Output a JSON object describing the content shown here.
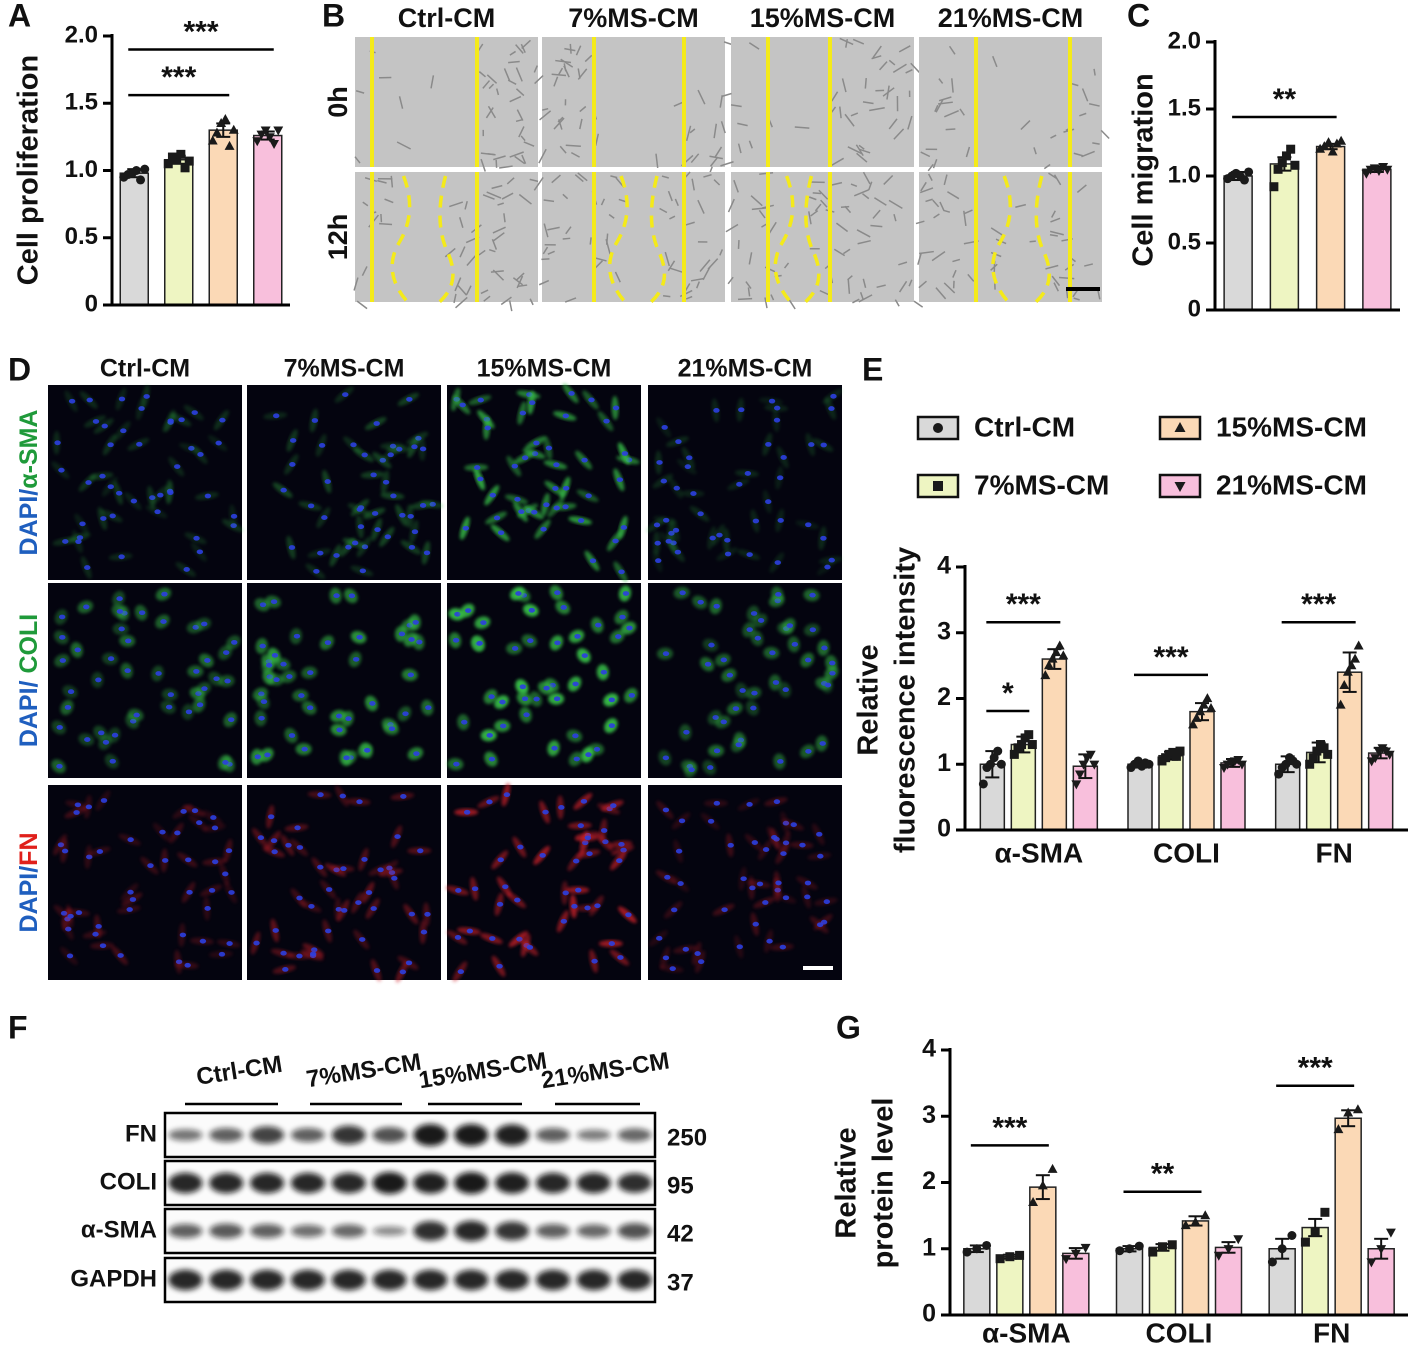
{
  "panel_labels": [
    "A",
    "B",
    "C",
    "D",
    "E",
    "F",
    "G"
  ],
  "scratch": {
    "groups": [
      "Ctrl-CM",
      "7%MS-CM",
      "15%MS-CM",
      "21%MS-CM"
    ],
    "times": [
      "0h",
      "12h"
    ]
  },
  "immuno": {
    "groups": [
      "Ctrl-CM",
      "7%MS-CM",
      "15%MS-CM",
      "21%MS-CM"
    ],
    "rows": [
      {
        "prefix": "DAPI/",
        "stain": "α-SMA"
      },
      {
        "prefix": "DAPI/ ",
        "stain": "COLI"
      },
      {
        "prefix": "DAPI/",
        "stain": "FN"
      }
    ]
  },
  "blot": {
    "groups": [
      "Ctrl-CM",
      "7%MS-CM",
      "15%MS-CM",
      "21%MS-CM"
    ],
    "rows": [
      {
        "name": "FN",
        "kda": 250
      },
      {
        "name": "COLI",
        "kda": 95
      },
      {
        "name": "α-SMA",
        "kda": 42
      },
      {
        "name": "GAPDH",
        "kda": 37
      }
    ]
  },
  "chart_data": [
    {
      "type": "bar",
      "ylabel": "Cell proliferation",
      "categories": [
        null,
        null,
        null,
        null
      ],
      "values": [
        0.98,
        1.08,
        1.3,
        1.26
      ],
      "errors": [
        0.03,
        0.03,
        0.05,
        0.03
      ],
      "points": [
        [
          0.95,
          0.97,
          0.98,
          1.0,
          0.93,
          1.01
        ],
        [
          1.05,
          1.1,
          1.08,
          1.12,
          1.02,
          1.07
        ],
        [
          1.22,
          1.28,
          1.35,
          1.38,
          1.18,
          1.3
        ],
        [
          1.22,
          1.27,
          1.3,
          1.25,
          1.2,
          1.3
        ]
      ],
      "colors": [
        "#d9d9d9",
        "#eef5c2",
        "#fbd9b6",
        "#f8bfdc"
      ],
      "markers": [
        "circle",
        "square",
        "triangle-up",
        "triangle-down"
      ],
      "ylim": [
        0,
        2
      ],
      "yticks": [
        0,
        0.5,
        {
          "value": 1,
          "label": "1.0"
        },
        1.5,
        {
          "value": 2,
          "label": "2.0"
        }
      ],
      "comparisons": [
        {
          "label": "***",
          "between": [
            0,
            2
          ]
        },
        {
          "label": "***",
          "between": [
            0,
            3
          ]
        }
      ]
    },
    {
      "type": "bar",
      "ylabel": "Cell migration",
      "categories": [
        null,
        null,
        null,
        null
      ],
      "values": [
        1.0,
        1.09,
        1.22,
        1.05
      ],
      "errors": [
        0.03,
        0.05,
        0.02,
        0.02
      ],
      "points": [
        [
          0.98,
          1.0,
          1.02,
          1.0,
          0.97,
          1.03
        ],
        [
          0.92,
          1.05,
          1.1,
          1.15,
          1.2,
          1.08
        ],
        [
          1.2,
          1.22,
          1.25,
          1.18,
          1.24,
          1.26
        ],
        [
          1.02,
          1.05,
          1.06,
          1.04,
          1.07,
          1.05
        ]
      ],
      "colors": [
        "#d9d9d9",
        "#eef5c2",
        "#fbd9b6",
        "#f8bfdc"
      ],
      "markers": [
        "circle",
        "square",
        "triangle-up",
        "triangle-down"
      ],
      "ylim": [
        0,
        2
      ],
      "yticks": [
        0,
        0.5,
        {
          "value": 1,
          "label": "1.0"
        },
        1.5,
        {
          "value": 2,
          "label": "2.0"
        }
      ],
      "comparisons": [
        {
          "label": "**",
          "between": [
            0,
            2
          ]
        }
      ]
    },
    {
      "type": "bar",
      "ylabel": [
        "Relative",
        "fluorescence intensity"
      ],
      "categories": [
        "α-SMA",
        "COLI",
        "FN"
      ],
      "legend": "top",
      "series": [
        {
          "name": "Ctrl-CM",
          "color": "#d9d9d9",
          "marker": "circle",
          "values": [
            1.0,
            1.0,
            1.0
          ],
          "errors": [
            0.2,
            0.05,
            0.12
          ],
          "points": [
            [
              0.7,
              0.95,
              1.0,
              1.1,
              1.2,
              1.0
            ],
            [
              0.95,
              1.0,
              1.05,
              0.97,
              1.02,
              1.0
            ],
            [
              0.85,
              0.95,
              1.0,
              1.1,
              1.05,
              1.0
            ]
          ]
        },
        {
          "name": "7%MS-CM",
          "color": "#eef5c2",
          "marker": "square",
          "values": [
            1.3,
            1.13,
            1.18
          ],
          "errors": [
            0.12,
            0.06,
            0.15
          ],
          "points": [
            [
              1.15,
              1.25,
              1.3,
              1.4,
              1.45,
              1.3
            ],
            [
              1.05,
              1.1,
              1.15,
              1.18,
              1.12,
              1.2
            ],
            [
              1.0,
              1.1,
              1.2,
              1.3,
              1.25,
              1.15
            ]
          ]
        },
        {
          "name": "15%MS-CM",
          "color": "#fbd9b6",
          "marker": "triangle-up",
          "values": [
            2.6,
            1.8,
            2.4
          ],
          "errors": [
            0.15,
            0.13,
            0.3
          ],
          "points": [
            [
              2.35,
              2.5,
              2.6,
              2.7,
              2.8,
              2.65
            ],
            [
              1.6,
              1.7,
              1.8,
              1.9,
              2.0,
              1.85
            ],
            [
              1.9,
              2.2,
              2.4,
              2.5,
              2.6,
              2.8
            ]
          ]
        },
        {
          "name": "21%MS-CM",
          "color": "#f8bfdc",
          "marker": "triangle-down",
          "values": [
            0.97,
            1.02,
            1.17
          ],
          "errors": [
            0.18,
            0.06,
            0.08
          ],
          "points": [
            [
              0.7,
              0.85,
              1.0,
              1.1,
              1.15,
              1.0
            ],
            [
              0.95,
              1.0,
              1.03,
              1.05,
              1.07,
              1.0
            ],
            [
              1.05,
              1.1,
              1.2,
              1.25,
              1.2,
              1.15
            ]
          ]
        }
      ],
      "ylim": [
        0,
        4
      ],
      "yticks": [
        0,
        1,
        2,
        3,
        4
      ],
      "comparisons": [
        {
          "label": "*",
          "category": 0,
          "between": [
            0,
            1
          ]
        },
        {
          "label": "***",
          "category": 0,
          "between": [
            0,
            2
          ]
        },
        {
          "label": "***",
          "category": 1,
          "between": [
            0,
            2
          ]
        },
        {
          "label": "***",
          "category": 2,
          "between": [
            0,
            2
          ]
        }
      ]
    },
    {
      "type": "bar",
      "ylabel": [
        "Relative",
        "protein level"
      ],
      "categories": [
        "α-SMA",
        "COLI",
        "FN"
      ],
      "series": [
        {
          "name": "Ctrl-CM",
          "color": "#d9d9d9",
          "marker": "circle",
          "values": [
            1.0,
            1.0,
            1.0
          ],
          "errors": [
            0.05,
            0.04,
            0.15
          ],
          "points": [
            [
              0.95,
              1.0,
              1.05
            ],
            [
              0.97,
              1.0,
              1.04
            ],
            [
              0.8,
              1.0,
              1.2
            ]
          ]
        },
        {
          "name": "7%MS-CM",
          "color": "#eef5c2",
          "marker": "square",
          "values": [
            0.88,
            1.02,
            1.32
          ],
          "errors": [
            0.03,
            0.05,
            0.13
          ],
          "points": [
            [
              0.85,
              0.88,
              0.9
            ],
            [
              0.95,
              1.03,
              1.06
            ],
            [
              1.1,
              1.25,
              1.55
            ]
          ]
        },
        {
          "name": "15%MS-CM",
          "color": "#fbd9b6",
          "marker": "triangle-up",
          "values": [
            1.93,
            1.42,
            2.97
          ],
          "errors": [
            0.18,
            0.07,
            0.12
          ],
          "points": [
            [
              1.7,
              1.95,
              2.2
            ],
            [
              1.35,
              1.4,
              1.5
            ],
            [
              2.8,
              3.05,
              3.1
            ]
          ]
        },
        {
          "name": "21%MS-CM",
          "color": "#f8bfdc",
          "marker": "triangle-down",
          "values": [
            0.93,
            1.02,
            1.0
          ],
          "errors": [
            0.08,
            0.08,
            0.15
          ],
          "points": [
            [
              0.85,
              0.93,
              1.02
            ],
            [
              0.9,
              1.0,
              1.15
            ],
            [
              0.8,
              1.0,
              1.25
            ]
          ]
        }
      ],
      "ylim": [
        0,
        4
      ],
      "yticks": [
        0,
        1,
        2,
        3,
        4
      ],
      "comparisons": [
        {
          "label": "***",
          "category": 0,
          "between": [
            0,
            2
          ]
        },
        {
          "label": "**",
          "category": 1,
          "between": [
            0,
            2
          ]
        },
        {
          "label": "***",
          "category": 2,
          "between": [
            0,
            2
          ]
        }
      ]
    }
  ]
}
